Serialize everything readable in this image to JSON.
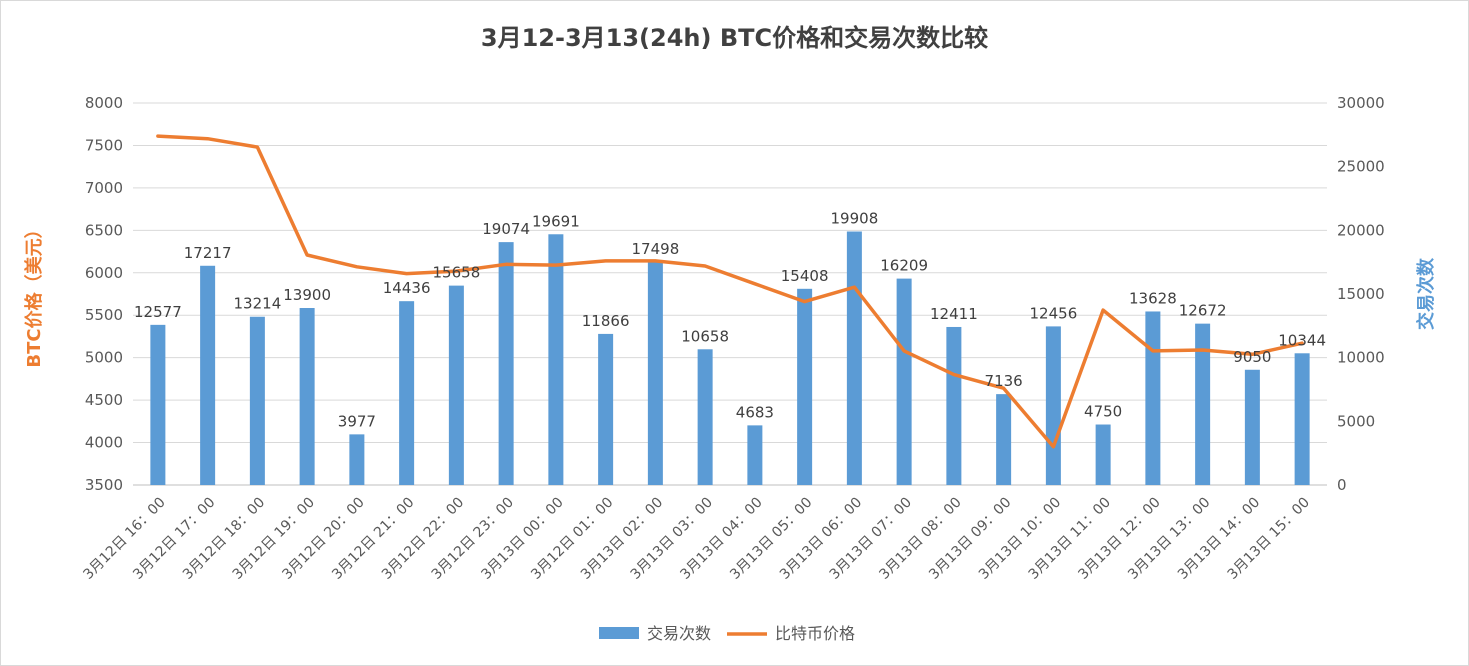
{
  "chart_data": {
    "type": "bar+line",
    "title": "3月12-3月13(24h) BTC价格和交易次数比较",
    "categories": [
      "3月12日 16：00",
      "3月12日 17：00",
      "3月12日 18：00",
      "3月12日 19：00",
      "3月12日 20：00",
      "3月12日 21：00",
      "3月12日 22：00",
      "3月12日 23：00",
      "3月13日 00：00",
      "3月12日 01：00",
      "3月13日 02：00",
      "3月13日 03：00",
      "3月13日 04：00",
      "3月13日 05：00",
      "3月13日 06：00",
      "3月13日 07：00",
      "3月13日 08：00",
      "3月13日 09：00",
      "3月13日 10：00",
      "3月13日 11：00",
      "3月13日 12：00",
      "3月13日 13：00",
      "3月13日 14：00",
      "3月13日 15：00"
    ],
    "series": [
      {
        "name": "交易次数",
        "type": "bar",
        "axis": "right",
        "color": "#5b9bd5",
        "values": [
          12577,
          17217,
          13214,
          13900,
          3977,
          14436,
          15658,
          19074,
          19691,
          11866,
          17498,
          10658,
          4683,
          15408,
          19908,
          16209,
          12411,
          7136,
          12456,
          4750,
          13628,
          12672,
          9050,
          10344
        ]
      },
      {
        "name": "比特币价格",
        "type": "line",
        "axis": "left",
        "color": "#ed7d31",
        "values": [
          7610,
          7580,
          7480,
          6210,
          6070,
          5990,
          6020,
          6100,
          6090,
          6140,
          6140,
          6080,
          5870,
          5660,
          5830,
          5080,
          4800,
          4640,
          3950,
          5560,
          5080,
          5090,
          5040,
          5170
        ]
      }
    ],
    "left_axis": {
      "label": "BTC价格（美元）",
      "min": 3500,
      "max": 8000,
      "step": 500,
      "color": "#ed7d31"
    },
    "right_axis": {
      "label": "交易次数",
      "min": 0,
      "max": 30000,
      "step": 5000,
      "color": "#5b9bd5"
    },
    "gridlines": true,
    "legend_position": "bottom"
  }
}
